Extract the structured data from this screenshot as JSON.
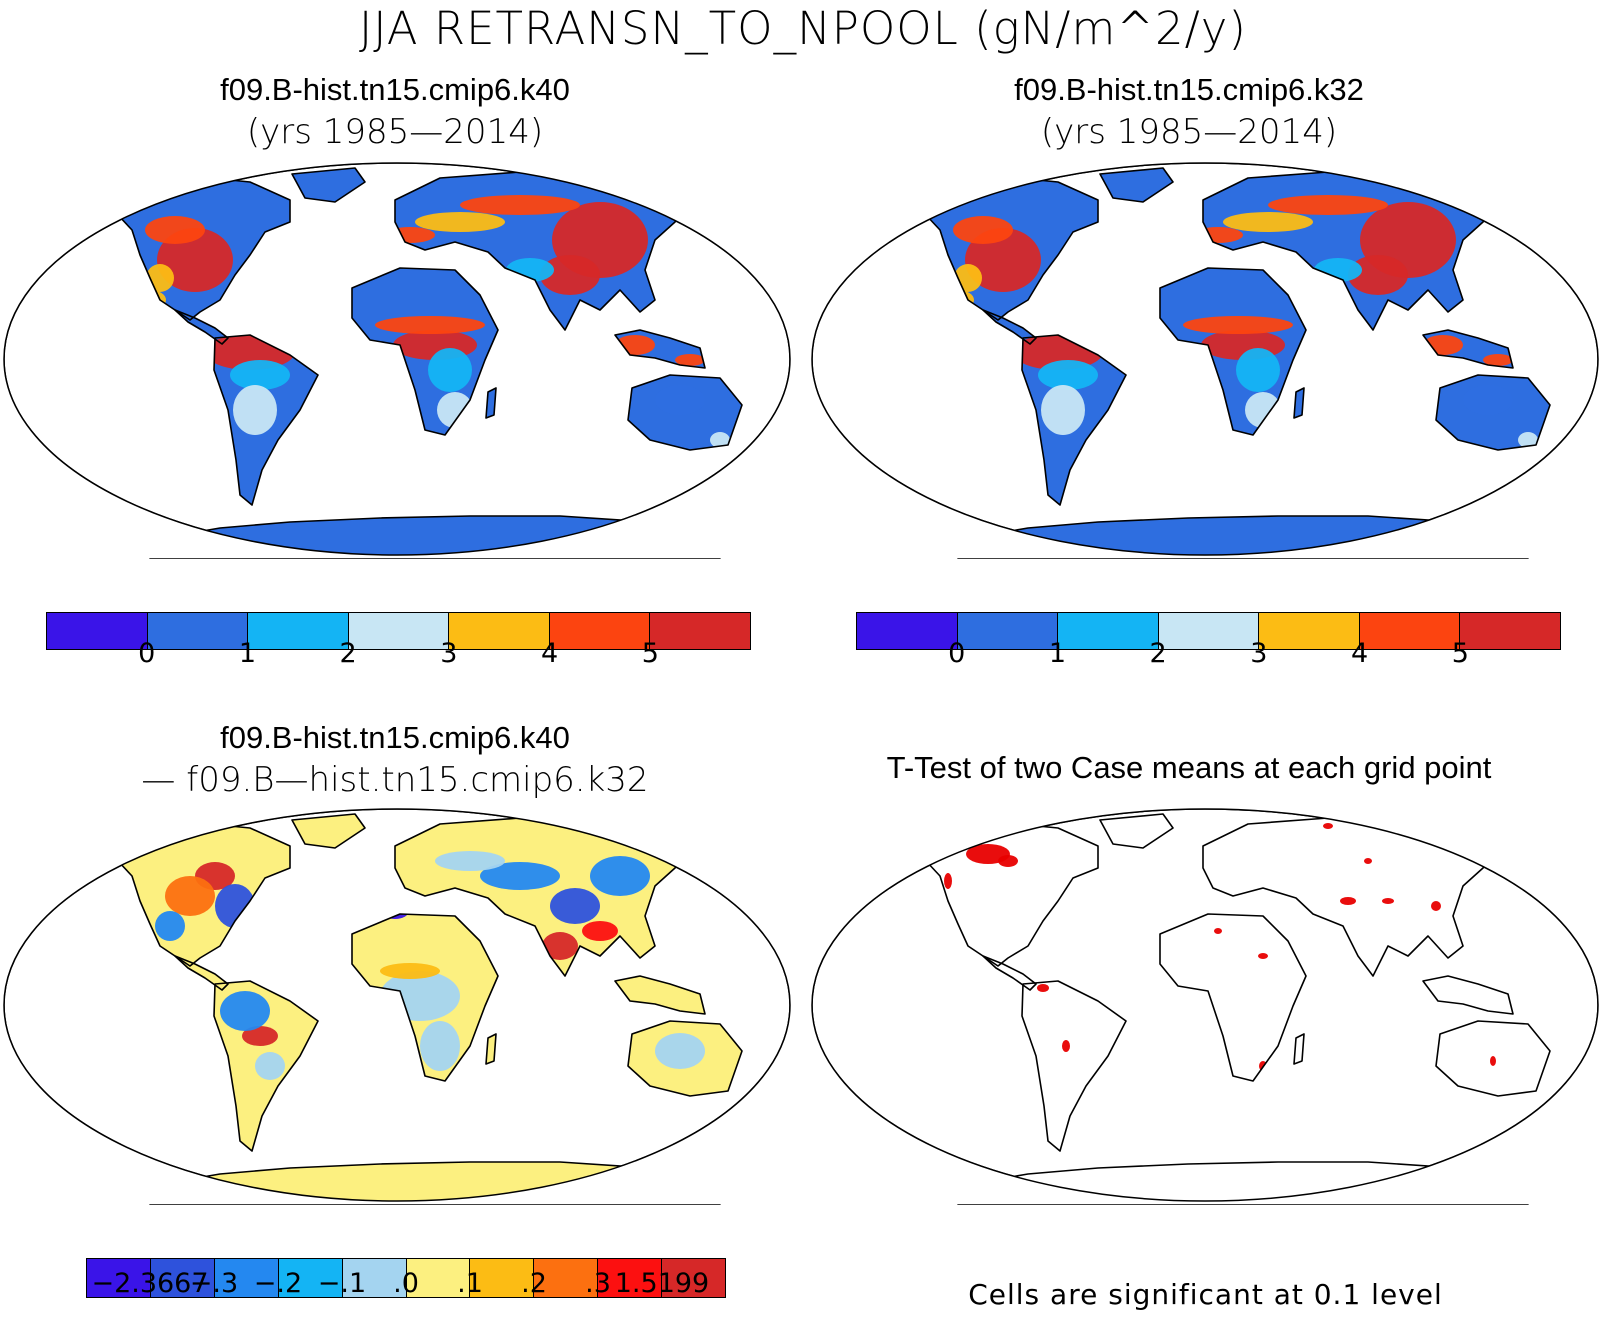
{
  "figure": {
    "title": "JJA RETRANSN_TO_NPOOL (gN/m^2/y)"
  },
  "panels": {
    "top_left": {
      "title": "f09.B-hist.tn15.cmip6.k40",
      "subtitle": "(yrs 1985—2014)",
      "colorbar": {
        "colors": [
          "#3a14e8",
          "#2e6ee0",
          "#14b4f4",
          "#c8e6f4",
          "#fcbc14",
          "#fc4410",
          "#d62828"
        ],
        "labels": [
          "0",
          "1",
          "2",
          "3",
          "4",
          "5"
        ]
      }
    },
    "top_right": {
      "title": "f09.B-hist.tn15.cmip6.k32",
      "subtitle": "(yrs 1985—2014)",
      "colorbar": {
        "colors": [
          "#3a14e8",
          "#2e6ee0",
          "#14b4f4",
          "#c8e6f4",
          "#fcbc14",
          "#fc4410",
          "#d62828"
        ],
        "labels": [
          "0",
          "1",
          "2",
          "3",
          "4",
          "5"
        ]
      }
    },
    "bottom_left": {
      "title": "f09.B-hist.tn15.cmip6.k40",
      "subtitle": "— f09.B—hist.tn15.cmip6.k32",
      "colorbar": {
        "colors": [
          "#3a14e8",
          "#2e52dc",
          "#2488f0",
          "#14b4f4",
          "#a4d4f0",
          "#fcf080",
          "#fcbc14",
          "#fc7010",
          "#fc1010",
          "#d62828"
        ],
        "labels": [
          "−2.3667",
          "−.3",
          "−.2",
          "−.1",
          ".0",
          ".1",
          ".2",
          ".3",
          "1.5199"
        ]
      }
    },
    "bottom_right": {
      "title": "T-Test of two Case means at each grid point",
      "note": "Cells are significant at 0.1 level"
    }
  },
  "colors": {
    "ocean": "#ffffff",
    "coast": "#000000",
    "significant": "#e80000",
    "antarctica_top": "#2e6ee0",
    "antarctica_diff": "#fcf080"
  }
}
